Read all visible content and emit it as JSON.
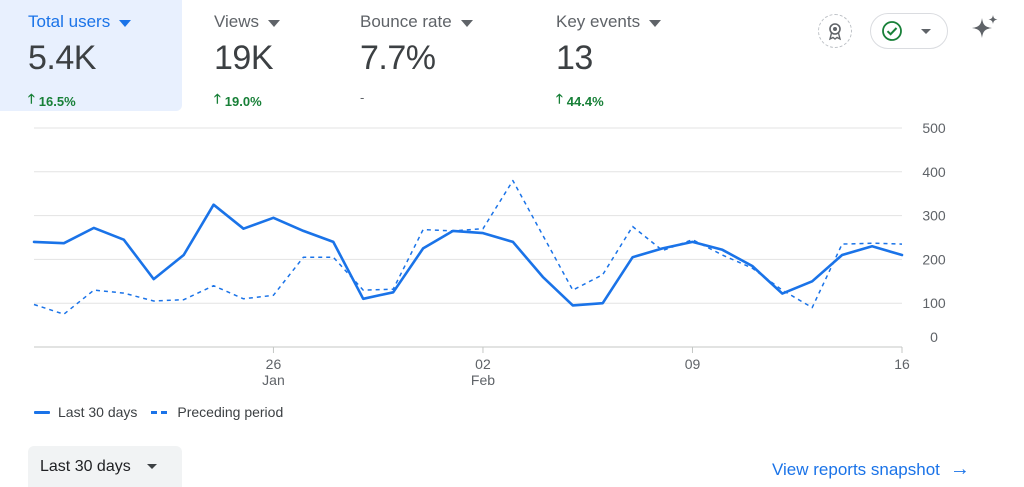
{
  "metrics": [
    {
      "label": "Total users",
      "value": "5.4K",
      "change": "16.5%",
      "trend": "up"
    },
    {
      "label": "Views",
      "value": "19K",
      "change": "19.0%",
      "trend": "up"
    },
    {
      "label": "Bounce rate",
      "value": "7.7%",
      "change": "-",
      "trend": "none"
    },
    {
      "label": "Key events",
      "value": "13",
      "change": "44.4%",
      "trend": "up"
    }
  ],
  "icons": {
    "badge": "ribbon-badge-icon",
    "status": "check-circle-icon",
    "sparkle": "sparkle-icon"
  },
  "colors": {
    "accent": "#1a73e8",
    "positive": "#188038",
    "active_tab_bg": "#e8f0fe"
  },
  "chart_data": {
    "type": "line",
    "x_ticks": [
      {
        "day": 8,
        "label": "26",
        "sublabel": "Jan"
      },
      {
        "day": 15,
        "label": "02",
        "sublabel": "Feb"
      },
      {
        "day": 22,
        "label": "09",
        "sublabel": ""
      },
      {
        "day": 29,
        "label": "16",
        "sublabel": ""
      }
    ],
    "y_ticks": [
      0,
      100,
      200,
      300,
      400,
      500
    ],
    "ylim": [
      0,
      500
    ],
    "grid": true,
    "legend_position": "bottom-left",
    "series": [
      {
        "name": "Last 30 days",
        "style": "solid",
        "values": [
          240,
          237,
          272,
          245,
          155,
          210,
          325,
          270,
          295,
          265,
          240,
          110,
          125,
          225,
          265,
          260,
          240,
          160,
          95,
          100,
          205,
          225,
          240,
          222,
          185,
          122,
          150,
          210,
          230,
          210
        ]
      },
      {
        "name": "Preceding period",
        "style": "dashed",
        "values": [
          97,
          75,
          130,
          123,
          105,
          108,
          140,
          110,
          118,
          205,
          205,
          130,
          132,
          268,
          265,
          270,
          380,
          255,
          130,
          165,
          275,
          220,
          245,
          210,
          180,
          130,
          90,
          235,
          237,
          235
        ]
      }
    ]
  },
  "controls": {
    "date_range": "Last 30 days",
    "snapshot_link": "View reports snapshot"
  }
}
